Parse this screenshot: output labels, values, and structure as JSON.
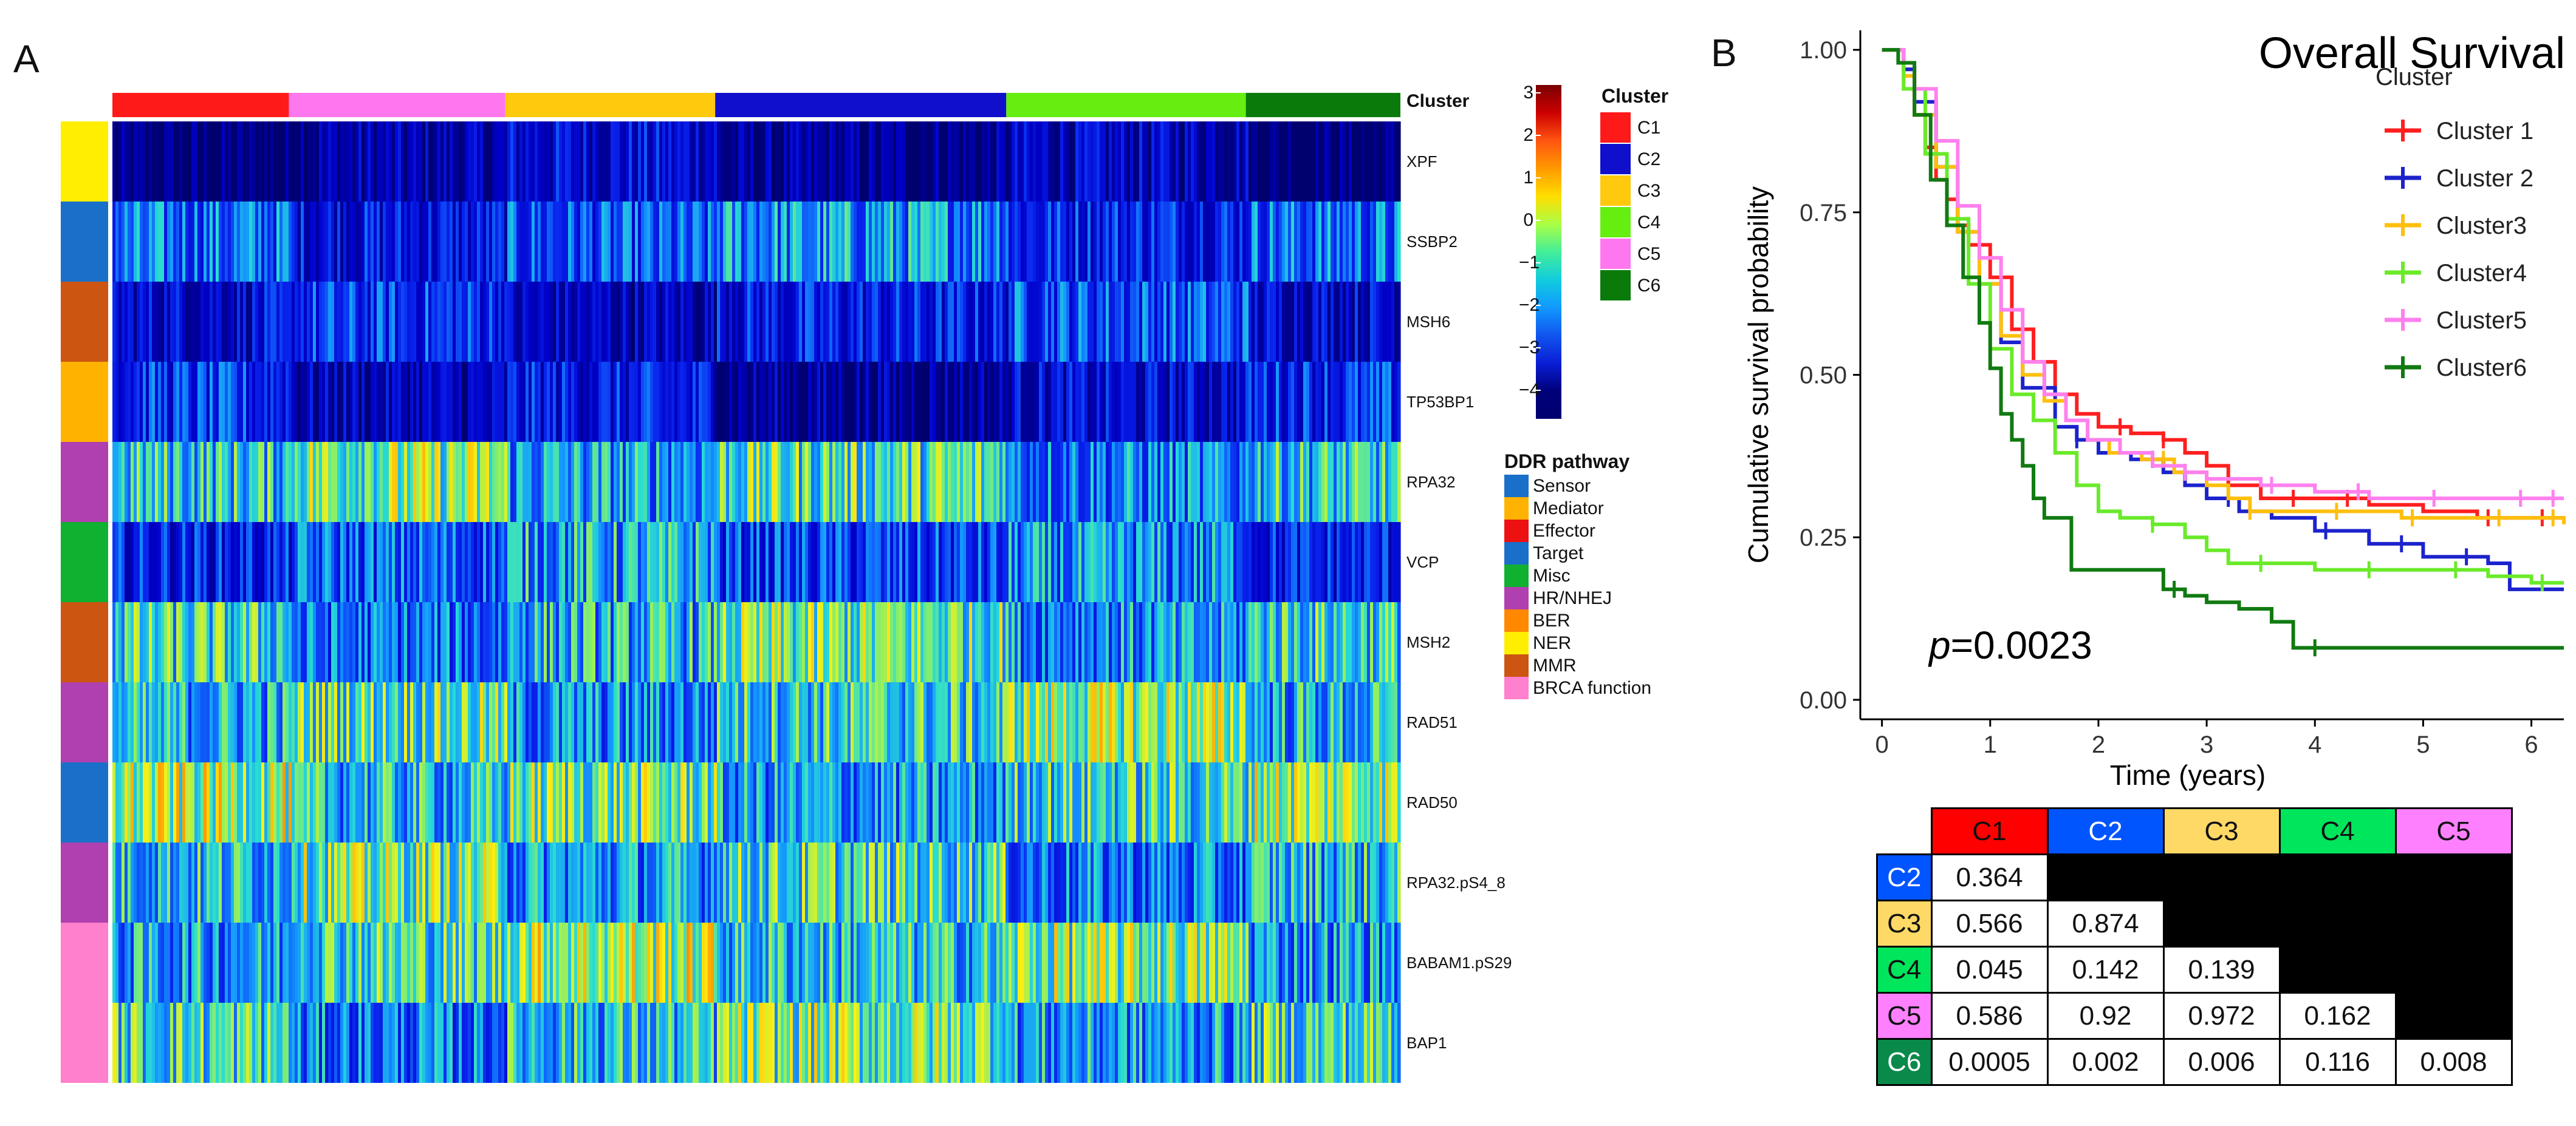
{
  "panel_a": {
    "letter": "A",
    "cluster_header": "Cluster",
    "clusters": [
      {
        "name": "C1",
        "color": "#ff1a1a",
        "fraction": 0.137
      },
      {
        "name": "C5",
        "color": "#ff77ee",
        "fraction": 0.168
      },
      {
        "name": "C3",
        "color": "#ffc90d",
        "fraction": 0.163
      },
      {
        "name": "C2",
        "color": "#1010cc",
        "fraction": 0.226
      },
      {
        "name": "C4",
        "color": "#66ee11",
        "fraction": 0.186
      },
      {
        "name": "C6",
        "color": "#0a7a0a",
        "fraction": 0.12
      }
    ],
    "genes": [
      {
        "name": "XPF",
        "pathway": "NER",
        "level": -3.2
      },
      {
        "name": "SSBP2",
        "pathway": "Sensor",
        "level": -1.6
      },
      {
        "name": "MSH6",
        "pathway": "MMR",
        "level": -2.2
      },
      {
        "name": "TP53BP1",
        "pathway": "Mediator",
        "level": -2.6
      },
      {
        "name": "RPA32",
        "pathway": "HR/NHEJ",
        "level": -0.4
      },
      {
        "name": "VCP",
        "pathway": "Misc",
        "level": -1.4
      },
      {
        "name": "MSH2",
        "pathway": "MMR",
        "level": -0.6
      },
      {
        "name": "RAD51",
        "pathway": "HR/NHEJ",
        "level": -0.3
      },
      {
        "name": "RAD50",
        "pathway": "Sensor",
        "level": -0.2
      },
      {
        "name": "RPA32.pS4_8",
        "pathway": "HR/NHEJ",
        "level": -0.5
      },
      {
        "name": "BABAM1.pS29",
        "pathway": "BRCA function",
        "level": -0.1
      },
      {
        "name": "BAP1",
        "pathway": "BRCA function",
        "level": -0.5
      }
    ],
    "pathway_colors": {
      "Sensor": "#1a70c8",
      "Mediator": "#ffb300",
      "Effector": "#ee1111",
      "Target": "#1a70c8",
      "Misc": "#10b030",
      "HR/NHEJ": "#b040b0",
      "BER": "#ff8800",
      "NER": "#ffee00",
      "MMR": "#cc5511",
      "BRCA function": "#ff80cc"
    },
    "scale": {
      "ticks": [
        "3",
        "2",
        "1",
        "0",
        "−1",
        "−2",
        "−3",
        "−4"
      ],
      "colors": [
        "#7a0000",
        "#cc0000",
        "#ff5511",
        "#ff9900",
        "#ffdd00",
        "#aaff44",
        "#44ee99",
        "#11ccdd",
        "#1199ff",
        "#1155ee",
        "#0a1ed6",
        "#00007a",
        "#000070"
      ]
    },
    "cluster_legend": {
      "title": "Cluster",
      "items": [
        {
          "label": "C1",
          "color": "#ff1a1a"
        },
        {
          "label": "C2",
          "color": "#1010cc"
        },
        {
          "label": "C3",
          "color": "#ffc90d"
        },
        {
          "label": "C4",
          "color": "#66ee11"
        },
        {
          "label": "C5",
          "color": "#ff77ee"
        },
        {
          "label": "C6",
          "color": "#0a7a0a"
        }
      ]
    },
    "pathway_legend": {
      "title": "DDR pathway",
      "items": [
        "Sensor",
        "Mediator",
        "Effector",
        "Target",
        "Misc",
        "HR/NHEJ",
        "BER",
        "NER",
        "MMR",
        "BRCA function"
      ]
    }
  },
  "chart_data": {
    "type": "line",
    "title": "Overall Survival",
    "xlabel": "Time (years)",
    "ylabel": "Cumulative survival probability",
    "xlim": [
      -0.2,
      6.3
    ],
    "ylim": [
      -0.03,
      1.03
    ],
    "xticks": [
      0,
      1,
      2,
      3,
      4,
      5,
      6
    ],
    "yticks": [
      0.0,
      0.25,
      0.5,
      0.75,
      1.0
    ],
    "ytick_labels": [
      "0.00",
      "0.25",
      "0.50",
      "0.75",
      "1.00"
    ],
    "legend_title": "Cluster",
    "annotation": {
      "italic": "p",
      "rest": "=0.0023"
    },
    "series": [
      {
        "name": "Cluster 1",
        "color": "#ff1f1f",
        "points": [
          [
            0,
            1
          ],
          [
            0.2,
            0.97
          ],
          [
            0.3,
            0.9
          ],
          [
            0.4,
            0.85
          ],
          [
            0.5,
            0.8
          ],
          [
            0.6,
            0.77
          ],
          [
            0.7,
            0.73
          ],
          [
            0.8,
            0.7
          ],
          [
            1.0,
            0.65
          ],
          [
            1.2,
            0.57
          ],
          [
            1.4,
            0.52
          ],
          [
            1.6,
            0.47
          ],
          [
            1.8,
            0.44
          ],
          [
            2.0,
            0.42
          ],
          [
            2.3,
            0.41
          ],
          [
            2.6,
            0.4
          ],
          [
            2.8,
            0.38
          ],
          [
            3.0,
            0.36
          ],
          [
            3.2,
            0.33
          ],
          [
            3.5,
            0.31
          ],
          [
            4.0,
            0.31
          ],
          [
            4.5,
            0.3
          ],
          [
            5.0,
            0.29
          ],
          [
            5.5,
            0.28
          ],
          [
            6.3,
            0.28
          ]
        ],
        "censor": [
          2.2,
          2.6,
          3.2,
          3.8,
          4.3,
          5.6,
          6.1
        ]
      },
      {
        "name": "Cluster 2",
        "color": "#1c23cc",
        "points": [
          [
            0,
            1
          ],
          [
            0.2,
            0.97
          ],
          [
            0.3,
            0.92
          ],
          [
            0.5,
            0.82
          ],
          [
            0.7,
            0.72
          ],
          [
            0.9,
            0.64
          ],
          [
            1.1,
            0.55
          ],
          [
            1.3,
            0.48
          ],
          [
            1.6,
            0.42
          ],
          [
            1.8,
            0.4
          ],
          [
            2.0,
            0.38
          ],
          [
            2.3,
            0.37
          ],
          [
            2.6,
            0.35
          ],
          [
            2.8,
            0.33
          ],
          [
            3.0,
            0.31
          ],
          [
            3.3,
            0.29
          ],
          [
            3.6,
            0.28
          ],
          [
            4.0,
            0.26
          ],
          [
            4.5,
            0.24
          ],
          [
            5.0,
            0.22
          ],
          [
            5.6,
            0.21
          ],
          [
            5.8,
            0.17
          ],
          [
            6.3,
            0.17
          ]
        ],
        "censor": [
          1.8,
          2.5,
          3.2,
          4.1,
          4.8,
          5.4
        ]
      },
      {
        "name": "Cluster3",
        "color": "#ffbf0d",
        "points": [
          [
            0,
            1
          ],
          [
            0.2,
            0.96
          ],
          [
            0.3,
            0.9
          ],
          [
            0.5,
            0.82
          ],
          [
            0.7,
            0.72
          ],
          [
            0.9,
            0.64
          ],
          [
            1.1,
            0.56
          ],
          [
            1.3,
            0.5
          ],
          [
            1.5,
            0.46
          ],
          [
            1.7,
            0.43
          ],
          [
            1.9,
            0.4
          ],
          [
            2.1,
            0.38
          ],
          [
            2.4,
            0.37
          ],
          [
            2.7,
            0.35
          ],
          [
            3.0,
            0.33
          ],
          [
            3.2,
            0.31
          ],
          [
            3.4,
            0.29
          ],
          [
            4.0,
            0.29
          ],
          [
            4.8,
            0.28
          ],
          [
            5.5,
            0.28
          ],
          [
            6.3,
            0.27
          ]
        ],
        "censor": [
          2.6,
          3.4,
          4.2,
          4.9,
          5.7,
          6.2
        ]
      },
      {
        "name": "Cluster4",
        "color": "#6aea2a",
        "points": [
          [
            0,
            1
          ],
          [
            0.2,
            0.94
          ],
          [
            0.4,
            0.84
          ],
          [
            0.6,
            0.74
          ],
          [
            0.8,
            0.64
          ],
          [
            1.0,
            0.54
          ],
          [
            1.2,
            0.47
          ],
          [
            1.4,
            0.43
          ],
          [
            1.6,
            0.38
          ],
          [
            1.8,
            0.33
          ],
          [
            2.0,
            0.29
          ],
          [
            2.2,
            0.28
          ],
          [
            2.5,
            0.27
          ],
          [
            2.8,
            0.25
          ],
          [
            3.0,
            0.23
          ],
          [
            3.2,
            0.21
          ],
          [
            4.0,
            0.2
          ],
          [
            5.0,
            0.2
          ],
          [
            5.6,
            0.19
          ],
          [
            6.0,
            0.18
          ],
          [
            6.3,
            0.18
          ]
        ],
        "censor": [
          2.5,
          3.5,
          4.5,
          5.3,
          6.1
        ]
      },
      {
        "name": "Cluster5",
        "color": "#ff80ee",
        "points": [
          [
            0,
            1
          ],
          [
            0.2,
            0.98
          ],
          [
            0.3,
            0.94
          ],
          [
            0.5,
            0.86
          ],
          [
            0.7,
            0.76
          ],
          [
            0.9,
            0.68
          ],
          [
            1.1,
            0.6
          ],
          [
            1.3,
            0.52
          ],
          [
            1.5,
            0.47
          ],
          [
            1.7,
            0.43
          ],
          [
            1.9,
            0.4
          ],
          [
            2.2,
            0.38
          ],
          [
            2.5,
            0.36
          ],
          [
            2.8,
            0.35
          ],
          [
            3.0,
            0.34
          ],
          [
            3.5,
            0.33
          ],
          [
            4.0,
            0.32
          ],
          [
            4.5,
            0.31
          ],
          [
            5.0,
            0.31
          ],
          [
            5.5,
            0.31
          ],
          [
            6.3,
            0.31
          ]
        ],
        "censor": [
          2.8,
          3.6,
          4.4,
          5.1,
          5.9,
          6.2
        ]
      },
      {
        "name": "Cluster6",
        "color": "#117a11",
        "points": [
          [
            0,
            1
          ],
          [
            0.15,
            0.98
          ],
          [
            0.3,
            0.9
          ],
          [
            0.45,
            0.8
          ],
          [
            0.6,
            0.73
          ],
          [
            0.75,
            0.65
          ],
          [
            0.9,
            0.58
          ],
          [
            1.0,
            0.51
          ],
          [
            1.1,
            0.44
          ],
          [
            1.2,
            0.4
          ],
          [
            1.3,
            0.36
          ],
          [
            1.4,
            0.31
          ],
          [
            1.5,
            0.28
          ],
          [
            1.7,
            0.28
          ],
          [
            1.75,
            0.2
          ],
          [
            2.3,
            0.2
          ],
          [
            2.6,
            0.17
          ],
          [
            2.8,
            0.16
          ],
          [
            3.0,
            0.15
          ],
          [
            3.3,
            0.14
          ],
          [
            3.6,
            0.12
          ],
          [
            3.8,
            0.08
          ],
          [
            6.3,
            0.08
          ]
        ],
        "censor": [
          2.7,
          4.0
        ]
      }
    ]
  },
  "panel_b": {
    "letter": "B",
    "pvalue_table": {
      "columns": [
        {
          "label": "C1",
          "color": "#ff0000",
          "text_color": "#111111"
        },
        {
          "label": "C2",
          "color": "#0055ff",
          "text_color": "#ffffff"
        },
        {
          "label": "C3",
          "color": "#ffd966",
          "text_color": "#111111"
        },
        {
          "label": "C4",
          "color": "#00e65c",
          "text_color": "#111111"
        },
        {
          "label": "C5",
          "color": "#ff80ff",
          "text_color": "#111111"
        }
      ],
      "rows": [
        {
          "label": "C2",
          "color": "#0055ff",
          "text_color": "#ffffff",
          "values": [
            "0.364",
            "",
            "",
            "",
            ""
          ]
        },
        {
          "label": "C3",
          "color": "#ffd966",
          "text_color": "#111111",
          "values": [
            "0.566",
            "0.874",
            "",
            "",
            ""
          ]
        },
        {
          "label": "C4",
          "color": "#00e65c",
          "text_color": "#111111",
          "values": [
            "0.045",
            "0.142",
            "0.139",
            "",
            ""
          ]
        },
        {
          "label": "C5",
          "color": "#ff80ff",
          "text_color": "#111111",
          "values": [
            "0.586",
            "0.92",
            "0.972",
            "0.162",
            ""
          ]
        },
        {
          "label": "C6",
          "color": "#0a8a4a",
          "text_color": "#ffffff",
          "values": [
            "0.0005",
            "0.002",
            "0.006",
            "0.116",
            "0.008"
          ]
        }
      ]
    }
  }
}
